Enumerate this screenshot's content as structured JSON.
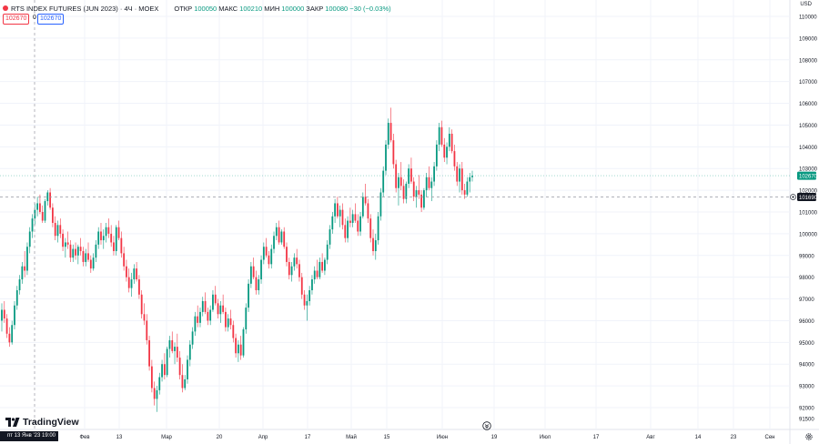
{
  "header": {
    "symbol_title": "RTS INDEX FUTURES (JUN 2023) · 4Ч · MOEX",
    "ohlc": [
      {
        "label": "ОТКР",
        "value": "100050"
      },
      {
        "label": "МАКС",
        "value": "100210"
      },
      {
        "label": "МИН",
        "value": "100000"
      },
      {
        "label": "ЗАКР",
        "value": "100080"
      },
      {
        "label": "",
        "value": "−30 (−0.03%)"
      }
    ],
    "price_box_left": "102670",
    "price_box_mid": "0",
    "price_box_right": "102670"
  },
  "currency_label": "USD",
  "brand": "TradingView",
  "crosshair_time_label": "пт 13 Янв '23 19:00",
  "colors": {
    "up": "#089981",
    "down": "#f23645",
    "grid": "#f0f3fa",
    "text": "#131722",
    "last_price_label": "#089981",
    "crosshair_label": "#131722"
  },
  "icons": [
    "tradingview-logo-icon",
    "go-to-realtime-icon",
    "settings-gear-icon",
    "crosshair-price-icon"
  ],
  "chart_data": {
    "type": "candlestick",
    "interval": "4h",
    "y_axis": {
      "min": 91500,
      "max": 110500,
      "tick_labels": [
        "110000",
        "109000",
        "108000",
        "107000",
        "106000",
        "105000",
        "104000",
        "103000",
        "102000",
        "101000",
        "100000",
        "99000",
        "98000",
        "97000",
        "96000",
        "95000",
        "94000",
        "93000",
        "92000",
        "91500"
      ],
      "last_price": "102670",
      "crosshair_price": "101690"
    },
    "x_axis": {
      "tick_labels": [
        "Фев",
        "13",
        "Мар",
        "20",
        "Апр",
        "17",
        "Май",
        "15",
        "Июн",
        "19",
        "Июл",
        "17",
        "Авг",
        "14",
        "23",
        "Сен"
      ]
    },
    "grid": true,
    "candles": [
      {
        "o": 96000,
        "h": 96800,
        "l": 95500,
        "c": 96500
      },
      {
        "o": 96500,
        "h": 96900,
        "l": 95900,
        "c": 96100
      },
      {
        "o": 96100,
        "h": 96300,
        "l": 95200,
        "c": 95400
      },
      {
        "o": 95400,
        "h": 95700,
        "l": 94800,
        "c": 95000
      },
      {
        "o": 95000,
        "h": 96000,
        "l": 94900,
        "c": 95800
      },
      {
        "o": 95800,
        "h": 96900,
        "l": 95600,
        "c": 96700
      },
      {
        "o": 96700,
        "h": 97600,
        "l": 96500,
        "c": 97400
      },
      {
        "o": 97400,
        "h": 98100,
        "l": 97200,
        "c": 97900
      },
      {
        "o": 97900,
        "h": 98700,
        "l": 97700,
        "c": 98500
      },
      {
        "o": 98500,
        "h": 99200,
        "l": 98000,
        "c": 98300
      },
      {
        "o": 98300,
        "h": 99600,
        "l": 98100,
        "c": 99400
      },
      {
        "o": 99400,
        "h": 100300,
        "l": 99100,
        "c": 100100
      },
      {
        "o": 100100,
        "h": 100900,
        "l": 99800,
        "c": 100700
      },
      {
        "o": 100700,
        "h": 101400,
        "l": 100400,
        "c": 101100
      },
      {
        "o": 101100,
        "h": 101700,
        "l": 100800,
        "c": 101400
      },
      {
        "o": 101400,
        "h": 101800,
        "l": 100900,
        "c": 101000
      },
      {
        "o": 101000,
        "h": 101300,
        "l": 100500,
        "c": 100600
      },
      {
        "o": 100600,
        "h": 101600,
        "l": 100500,
        "c": 101500
      },
      {
        "o": 101500,
        "h": 102000,
        "l": 101300,
        "c": 101900
      },
      {
        "o": 101900,
        "h": 102100,
        "l": 101100,
        "c": 101200
      },
      {
        "o": 101200,
        "h": 101400,
        "l": 100300,
        "c": 100500
      },
      {
        "o": 100500,
        "h": 100800,
        "l": 99700,
        "c": 99900
      },
      {
        "o": 99900,
        "h": 100600,
        "l": 99600,
        "c": 100400
      },
      {
        "o": 100400,
        "h": 100700,
        "l": 99800,
        "c": 100000
      },
      {
        "o": 100000,
        "h": 100200,
        "l": 99200,
        "c": 99400
      },
      {
        "o": 99400,
        "h": 99800,
        "l": 98900,
        "c": 99600
      },
      {
        "o": 99600,
        "h": 100100,
        "l": 99300,
        "c": 99500
      },
      {
        "o": 99500,
        "h": 99700,
        "l": 98700,
        "c": 98900
      },
      {
        "o": 98900,
        "h": 99500,
        "l": 98700,
        "c": 99300
      },
      {
        "o": 99300,
        "h": 99600,
        "l": 98800,
        "c": 99000
      },
      {
        "o": 99000,
        "h": 99500,
        "l": 98600,
        "c": 99400
      },
      {
        "o": 99400,
        "h": 99800,
        "l": 99000,
        "c": 99200
      },
      {
        "o": 99200,
        "h": 99400,
        "l": 98500,
        "c": 98700
      },
      {
        "o": 98700,
        "h": 99300,
        "l": 98500,
        "c": 99100
      },
      {
        "o": 99100,
        "h": 99600,
        "l": 98700,
        "c": 98800
      },
      {
        "o": 98800,
        "h": 99000,
        "l": 98200,
        "c": 98400
      },
      {
        "o": 98400,
        "h": 99100,
        "l": 98300,
        "c": 98900
      },
      {
        "o": 98900,
        "h": 99700,
        "l": 98700,
        "c": 99500
      },
      {
        "o": 99500,
        "h": 100300,
        "l": 99300,
        "c": 100100
      },
      {
        "o": 100100,
        "h": 100500,
        "l": 99500,
        "c": 99700
      },
      {
        "o": 99700,
        "h": 100200,
        "l": 99300,
        "c": 99900
      },
      {
        "o": 99900,
        "h": 100500,
        "l": 99600,
        "c": 100300
      },
      {
        "o": 100300,
        "h": 100700,
        "l": 99800,
        "c": 100000
      },
      {
        "o": 100000,
        "h": 100400,
        "l": 99400,
        "c": 99600
      },
      {
        "o": 99600,
        "h": 99900,
        "l": 99000,
        "c": 99200
      },
      {
        "o": 99200,
        "h": 100400,
        "l": 99000,
        "c": 100300
      },
      {
        "o": 100300,
        "h": 100600,
        "l": 99700,
        "c": 99800
      },
      {
        "o": 99800,
        "h": 100100,
        "l": 98900,
        "c": 99100
      },
      {
        "o": 99100,
        "h": 99400,
        "l": 98300,
        "c": 98500
      },
      {
        "o": 98500,
        "h": 98800,
        "l": 97800,
        "c": 98000
      },
      {
        "o": 98000,
        "h": 98400,
        "l": 97300,
        "c": 97500
      },
      {
        "o": 97500,
        "h": 98200,
        "l": 97100,
        "c": 97900
      },
      {
        "o": 97900,
        "h": 98600,
        "l": 97700,
        "c": 98400
      },
      {
        "o": 98400,
        "h": 98700,
        "l": 97800,
        "c": 97900
      },
      {
        "o": 97900,
        "h": 98100,
        "l": 97000,
        "c": 97200
      },
      {
        "o": 97200,
        "h": 97400,
        "l": 96100,
        "c": 96300
      },
      {
        "o": 96300,
        "h": 96800,
        "l": 95800,
        "c": 96000
      },
      {
        "o": 96000,
        "h": 96300,
        "l": 94900,
        "c": 95100
      },
      {
        "o": 95100,
        "h": 95300,
        "l": 93700,
        "c": 93900
      },
      {
        "o": 93900,
        "h": 94200,
        "l": 92700,
        "c": 92900
      },
      {
        "o": 92900,
        "h": 93200,
        "l": 92100,
        "c": 92400
      },
      {
        "o": 92400,
        "h": 93000,
        "l": 91800,
        "c": 92800
      },
      {
        "o": 92800,
        "h": 93600,
        "l": 92600,
        "c": 93400
      },
      {
        "o": 93400,
        "h": 94200,
        "l": 93200,
        "c": 94000
      },
      {
        "o": 94000,
        "h": 94500,
        "l": 93300,
        "c": 93500
      },
      {
        "o": 93500,
        "h": 94800,
        "l": 93400,
        "c": 94700
      },
      {
        "o": 94700,
        "h": 95300,
        "l": 94300,
        "c": 95100
      },
      {
        "o": 95100,
        "h": 95500,
        "l": 94500,
        "c": 94600
      },
      {
        "o": 94600,
        "h": 95000,
        "l": 94000,
        "c": 94800
      },
      {
        "o": 94800,
        "h": 95400,
        "l": 94100,
        "c": 94300
      },
      {
        "o": 94300,
        "h": 94600,
        "l": 93300,
        "c": 93500
      },
      {
        "o": 93500,
        "h": 94000,
        "l": 92700,
        "c": 92900
      },
      {
        "o": 92900,
        "h": 93500,
        "l": 92800,
        "c": 93300
      },
      {
        "o": 93300,
        "h": 94400,
        "l": 93100,
        "c": 94200
      },
      {
        "o": 94200,
        "h": 95100,
        "l": 93900,
        "c": 94900
      },
      {
        "o": 94900,
        "h": 95700,
        "l": 94700,
        "c": 95500
      },
      {
        "o": 95500,
        "h": 96400,
        "l": 95300,
        "c": 96200
      },
      {
        "o": 96200,
        "h": 96700,
        "l": 95700,
        "c": 95900
      },
      {
        "o": 95900,
        "h": 96600,
        "l": 95700,
        "c": 96400
      },
      {
        "o": 96400,
        "h": 97100,
        "l": 96200,
        "c": 96900
      },
      {
        "o": 96900,
        "h": 97300,
        "l": 96300,
        "c": 96400
      },
      {
        "o": 96400,
        "h": 96600,
        "l": 95800,
        "c": 96000
      },
      {
        "o": 96000,
        "h": 96700,
        "l": 95800,
        "c": 96500
      },
      {
        "o": 96500,
        "h": 97400,
        "l": 96400,
        "c": 97200
      },
      {
        "o": 97200,
        "h": 97600,
        "l": 96700,
        "c": 96800
      },
      {
        "o": 96800,
        "h": 97000,
        "l": 96100,
        "c": 96300
      },
      {
        "o": 96300,
        "h": 96900,
        "l": 95900,
        "c": 96700
      },
      {
        "o": 96700,
        "h": 97200,
        "l": 96300,
        "c": 96400
      },
      {
        "o": 96400,
        "h": 96600,
        "l": 95500,
        "c": 95700
      },
      {
        "o": 95700,
        "h": 96300,
        "l": 95500,
        "c": 96100
      },
      {
        "o": 96100,
        "h": 96500,
        "l": 95600,
        "c": 95800
      },
      {
        "o": 95800,
        "h": 96000,
        "l": 95000,
        "c": 95200
      },
      {
        "o": 95200,
        "h": 95400,
        "l": 94300,
        "c": 94500
      },
      {
        "o": 94500,
        "h": 95100,
        "l": 94100,
        "c": 94900
      },
      {
        "o": 94900,
        "h": 95300,
        "l": 94200,
        "c": 94400
      },
      {
        "o": 94400,
        "h": 95700,
        "l": 94300,
        "c": 95600
      },
      {
        "o": 95600,
        "h": 96800,
        "l": 95400,
        "c": 96600
      },
      {
        "o": 96600,
        "h": 97900,
        "l": 96400,
        "c": 97700
      },
      {
        "o": 97700,
        "h": 98700,
        "l": 97500,
        "c": 98500
      },
      {
        "o": 98500,
        "h": 98900,
        "l": 97900,
        "c": 98000
      },
      {
        "o": 98000,
        "h": 98300,
        "l": 97200,
        "c": 97400
      },
      {
        "o": 97400,
        "h": 98100,
        "l": 97200,
        "c": 97900
      },
      {
        "o": 97900,
        "h": 99000,
        "l": 97700,
        "c": 98800
      },
      {
        "o": 98800,
        "h": 99600,
        "l": 98600,
        "c": 99400
      },
      {
        "o": 99400,
        "h": 99800,
        "l": 98900,
        "c": 99000
      },
      {
        "o": 99000,
        "h": 99200,
        "l": 98400,
        "c": 98600
      },
      {
        "o": 98600,
        "h": 99500,
        "l": 98400,
        "c": 99300
      },
      {
        "o": 99300,
        "h": 100100,
        "l": 99100,
        "c": 99900
      },
      {
        "o": 99900,
        "h": 100500,
        "l": 99700,
        "c": 100300
      },
      {
        "o": 100300,
        "h": 100600,
        "l": 99500,
        "c": 99600
      },
      {
        "o": 99600,
        "h": 100200,
        "l": 99500,
        "c": 100100
      },
      {
        "o": 100100,
        "h": 100300,
        "l": 99300,
        "c": 99400
      },
      {
        "o": 99400,
        "h": 99600,
        "l": 98500,
        "c": 98700
      },
      {
        "o": 98700,
        "h": 98900,
        "l": 97900,
        "c": 98100
      },
      {
        "o": 98100,
        "h": 98700,
        "l": 97800,
        "c": 98500
      },
      {
        "o": 98500,
        "h": 99100,
        "l": 98300,
        "c": 98900
      },
      {
        "o": 98900,
        "h": 99300,
        "l": 98400,
        "c": 98600
      },
      {
        "o": 98600,
        "h": 98800,
        "l": 97800,
        "c": 98000
      },
      {
        "o": 98000,
        "h": 98200,
        "l": 97000,
        "c": 97200
      },
      {
        "o": 97200,
        "h": 97400,
        "l": 96500,
        "c": 96700
      },
      {
        "o": 96700,
        "h": 97200,
        "l": 96000,
        "c": 96900
      },
      {
        "o": 96900,
        "h": 97600,
        "l": 96700,
        "c": 97400
      },
      {
        "o": 97400,
        "h": 98100,
        "l": 97200,
        "c": 97900
      },
      {
        "o": 97900,
        "h": 98500,
        "l": 97700,
        "c": 98300
      },
      {
        "o": 98300,
        "h": 98800,
        "l": 97900,
        "c": 98000
      },
      {
        "o": 98000,
        "h": 98900,
        "l": 97900,
        "c": 98700
      },
      {
        "o": 98700,
        "h": 99100,
        "l": 98200,
        "c": 98300
      },
      {
        "o": 98300,
        "h": 98900,
        "l": 98100,
        "c": 98800
      },
      {
        "o": 98800,
        "h": 99700,
        "l": 98600,
        "c": 99500
      },
      {
        "o": 99500,
        "h": 100400,
        "l": 99300,
        "c": 100200
      },
      {
        "o": 100200,
        "h": 101000,
        "l": 100000,
        "c": 100800
      },
      {
        "o": 100800,
        "h": 101600,
        "l": 100500,
        "c": 101400
      },
      {
        "o": 101400,
        "h": 101700,
        "l": 100700,
        "c": 100800
      },
      {
        "o": 100800,
        "h": 101300,
        "l": 100300,
        "c": 101100
      },
      {
        "o": 101100,
        "h": 101400,
        "l": 100200,
        "c": 100400
      },
      {
        "o": 100400,
        "h": 100700,
        "l": 99600,
        "c": 99800
      },
      {
        "o": 99800,
        "h": 100800,
        "l": 99600,
        "c": 100600
      },
      {
        "o": 100600,
        "h": 101200,
        "l": 100300,
        "c": 100500
      },
      {
        "o": 100500,
        "h": 101100,
        "l": 100300,
        "c": 100900
      },
      {
        "o": 100900,
        "h": 101400,
        "l": 100500,
        "c": 100600
      },
      {
        "o": 100600,
        "h": 100900,
        "l": 99900,
        "c": 100100
      },
      {
        "o": 100100,
        "h": 101000,
        "l": 99900,
        "c": 100800
      },
      {
        "o": 100800,
        "h": 101900,
        "l": 100700,
        "c": 101700
      },
      {
        "o": 101700,
        "h": 102300,
        "l": 101300,
        "c": 101400
      },
      {
        "o": 101400,
        "h": 101600,
        "l": 100500,
        "c": 100700
      },
      {
        "o": 100700,
        "h": 100900,
        "l": 99600,
        "c": 99800
      },
      {
        "o": 99800,
        "h": 100200,
        "l": 99000,
        "c": 99200
      },
      {
        "o": 99200,
        "h": 100000,
        "l": 98800,
        "c": 99700
      },
      {
        "o": 99700,
        "h": 101000,
        "l": 99500,
        "c": 100800
      },
      {
        "o": 100800,
        "h": 102100,
        "l": 100600,
        "c": 101900
      },
      {
        "o": 101900,
        "h": 103100,
        "l": 101700,
        "c": 102900
      },
      {
        "o": 102900,
        "h": 104300,
        "l": 102700,
        "c": 104100
      },
      {
        "o": 104100,
        "h": 105300,
        "l": 103900,
        "c": 105100
      },
      {
        "o": 105100,
        "h": 105800,
        "l": 104200,
        "c": 104300
      },
      {
        "o": 104300,
        "h": 104600,
        "l": 103000,
        "c": 103200
      },
      {
        "o": 103200,
        "h": 103400,
        "l": 101900,
        "c": 102100
      },
      {
        "o": 102100,
        "h": 102800,
        "l": 101300,
        "c": 102600
      },
      {
        "o": 102600,
        "h": 103300,
        "l": 102000,
        "c": 102200
      },
      {
        "o": 102200,
        "h": 102500,
        "l": 101400,
        "c": 101600
      },
      {
        "o": 101600,
        "h": 102400,
        "l": 101400,
        "c": 102300
      },
      {
        "o": 102300,
        "h": 103200,
        "l": 102100,
        "c": 103000
      },
      {
        "o": 103000,
        "h": 103500,
        "l": 102300,
        "c": 102400
      },
      {
        "o": 102400,
        "h": 102600,
        "l": 101500,
        "c": 101700
      },
      {
        "o": 101700,
        "h": 102200,
        "l": 101200,
        "c": 102000
      },
      {
        "o": 102000,
        "h": 102700,
        "l": 101600,
        "c": 101800
      },
      {
        "o": 101800,
        "h": 102000,
        "l": 101000,
        "c": 101200
      },
      {
        "o": 101200,
        "h": 102100,
        "l": 101100,
        "c": 102000
      },
      {
        "o": 102000,
        "h": 102800,
        "l": 101700,
        "c": 102600
      },
      {
        "o": 102600,
        "h": 103100,
        "l": 102000,
        "c": 102100
      },
      {
        "o": 102100,
        "h": 102600,
        "l": 101500,
        "c": 102400
      },
      {
        "o": 102400,
        "h": 103300,
        "l": 102200,
        "c": 103100
      },
      {
        "o": 103100,
        "h": 104300,
        "l": 102900,
        "c": 104100
      },
      {
        "o": 104100,
        "h": 105100,
        "l": 103800,
        "c": 104900
      },
      {
        "o": 104900,
        "h": 105200,
        "l": 104000,
        "c": 104100
      },
      {
        "o": 104100,
        "h": 104400,
        "l": 103300,
        "c": 103500
      },
      {
        "o": 103500,
        "h": 104200,
        "l": 103200,
        "c": 104000
      },
      {
        "o": 104000,
        "h": 104900,
        "l": 103800,
        "c": 104600
      },
      {
        "o": 104600,
        "h": 104800,
        "l": 103700,
        "c": 103800
      },
      {
        "o": 103800,
        "h": 104100,
        "l": 102900,
        "c": 103100
      },
      {
        "o": 103100,
        "h": 103300,
        "l": 102200,
        "c": 102400
      },
      {
        "o": 102400,
        "h": 103200,
        "l": 101900,
        "c": 103000
      },
      {
        "o": 103000,
        "h": 103300,
        "l": 101800,
        "c": 102000
      },
      {
        "o": 102000,
        "h": 102300,
        "l": 101600,
        "c": 101800
      },
      {
        "o": 101800,
        "h": 102600,
        "l": 101700,
        "c": 102400
      },
      {
        "o": 102400,
        "h": 102800,
        "l": 101900,
        "c": 102600
      },
      {
        "o": 102600,
        "h": 102900,
        "l": 102400,
        "c": 102670
      }
    ]
  }
}
